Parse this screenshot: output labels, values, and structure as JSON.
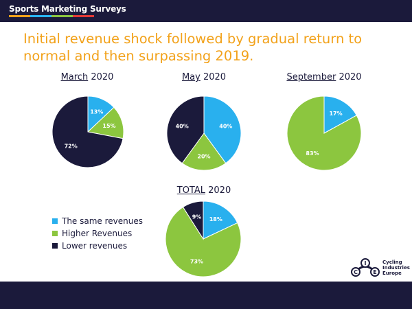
{
  "header": {
    "brand": "Sports Marketing Surveys",
    "brand_bar_colors": [
      "#f2a21b",
      "#29b6f6",
      "#8cc63f",
      "#e53935"
    ]
  },
  "headline": "Initial revenue shock followed by gradual return to normal and then surpassing 2019.",
  "colors": {
    "same": "#29b0ee",
    "higher": "#8cc63f",
    "lower": "#1b1a3b",
    "title": "#f2a21b"
  },
  "chart_data": [
    {
      "type": "pie",
      "title_month": "March",
      "title_year": "2020",
      "series": [
        {
          "name": "The same revenues",
          "value": 13,
          "label": "13%"
        },
        {
          "name": "Higher Revenues",
          "value": 15,
          "label": "15%"
        },
        {
          "name": "Lower revenues",
          "value": 72,
          "label": "72%"
        }
      ]
    },
    {
      "type": "pie",
      "title_month": "May",
      "title_year": "2020",
      "series": [
        {
          "name": "The same revenues",
          "value": 40,
          "label": "40%"
        },
        {
          "name": "Higher Revenues",
          "value": 20,
          "label": "20%"
        },
        {
          "name": "Lower revenues",
          "value": 40,
          "label": "40%"
        }
      ]
    },
    {
      "type": "pie",
      "title_month": "September",
      "title_year": "2020",
      "series": [
        {
          "name": "The same revenues",
          "value": 17,
          "label": "17%"
        },
        {
          "name": "Higher Revenues",
          "value": 83,
          "label": "83%"
        }
      ]
    },
    {
      "type": "pie",
      "title_month": "TOTAL",
      "title_year": "2020",
      "series": [
        {
          "name": "The same revenues",
          "value": 18,
          "label": "18%"
        },
        {
          "name": "Higher Revenues",
          "value": 73,
          "label": "73%"
        },
        {
          "name": "Lower revenues",
          "value": 9,
          "label": "9%"
        }
      ]
    }
  ],
  "legend": [
    {
      "label": "The same revenues",
      "color": "#29b0ee"
    },
    {
      "label": "Higher Revenues",
      "color": "#8cc63f"
    },
    {
      "label": "Lower revenues",
      "color": "#1b1a3b"
    }
  ],
  "logo": {
    "line1": "Cycling",
    "line2": "Industries",
    "line3": "Europe",
    "letters": [
      "C",
      "I",
      "E"
    ]
  }
}
